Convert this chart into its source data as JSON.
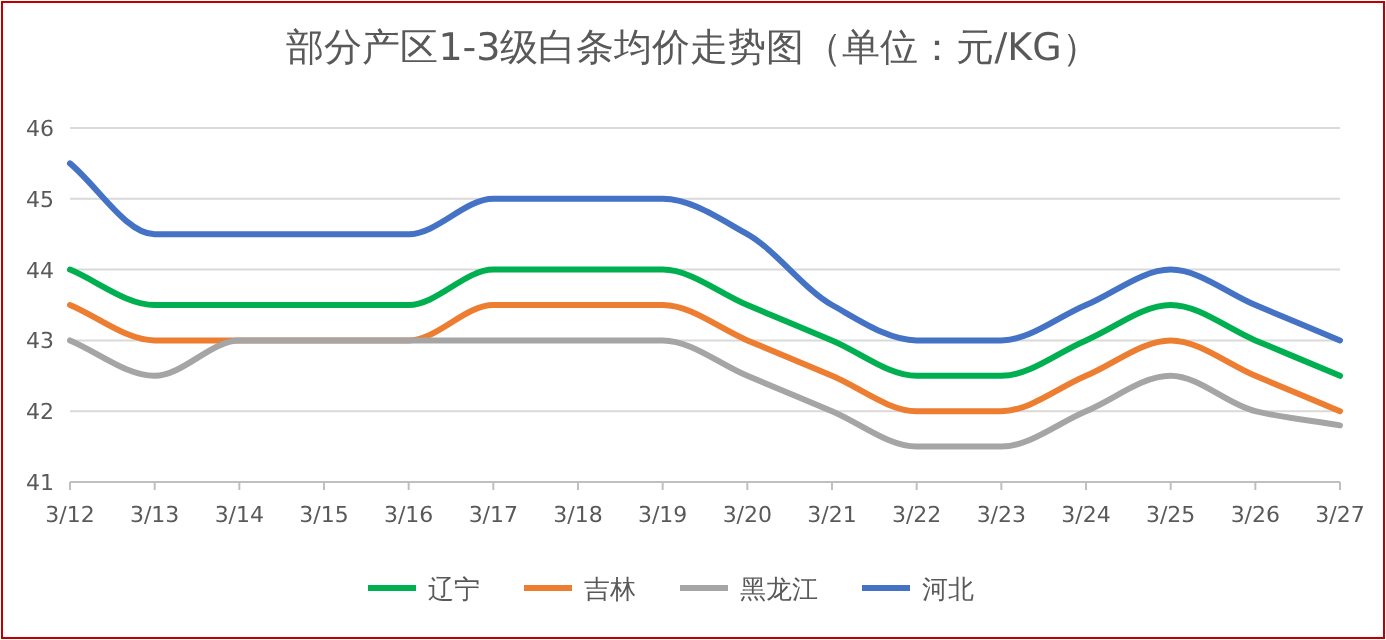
{
  "chart_data": {
    "type": "line",
    "title": "部分产区1-3级白条均价走势图（单位：元/KG）",
    "categories": [
      "3/12",
      "3/13",
      "3/14",
      "3/15",
      "3/16",
      "3/17",
      "3/18",
      "3/19",
      "3/20",
      "3/21",
      "3/22",
      "3/23",
      "3/24",
      "3/25",
      "3/26",
      "3/27"
    ],
    "series": [
      {
        "name": "辽宁",
        "color": "#00b050",
        "values": [
          44.0,
          43.5,
          43.5,
          43.5,
          43.5,
          44.0,
          44.0,
          44.0,
          43.5,
          43.0,
          42.5,
          42.5,
          43.0,
          43.5,
          43.0,
          42.5
        ]
      },
      {
        "name": "吉林",
        "color": "#ed7d31",
        "values": [
          43.5,
          43.0,
          43.0,
          43.0,
          43.0,
          43.5,
          43.5,
          43.5,
          43.0,
          42.5,
          42.0,
          42.0,
          42.5,
          43.0,
          42.5,
          42.0
        ]
      },
      {
        "name": "黑龙江",
        "color": "#a5a5a5",
        "values": [
          43.0,
          42.5,
          43.0,
          43.0,
          43.0,
          43.0,
          43.0,
          43.0,
          42.5,
          42.0,
          41.5,
          41.5,
          42.0,
          42.5,
          42.0,
          41.8
        ]
      },
      {
        "name": "河北",
        "color": "#4472c4",
        "values": [
          45.5,
          44.5,
          44.5,
          44.5,
          44.5,
          45.0,
          45.0,
          45.0,
          44.5,
          43.5,
          43.0,
          43.0,
          43.5,
          44.0,
          43.5,
          43.0
        ]
      }
    ],
    "ylim": [
      41,
      46
    ],
    "yticks": [
      41,
      42,
      43,
      44,
      45,
      46
    ],
    "grid": "y",
    "legend": "bottom"
  }
}
